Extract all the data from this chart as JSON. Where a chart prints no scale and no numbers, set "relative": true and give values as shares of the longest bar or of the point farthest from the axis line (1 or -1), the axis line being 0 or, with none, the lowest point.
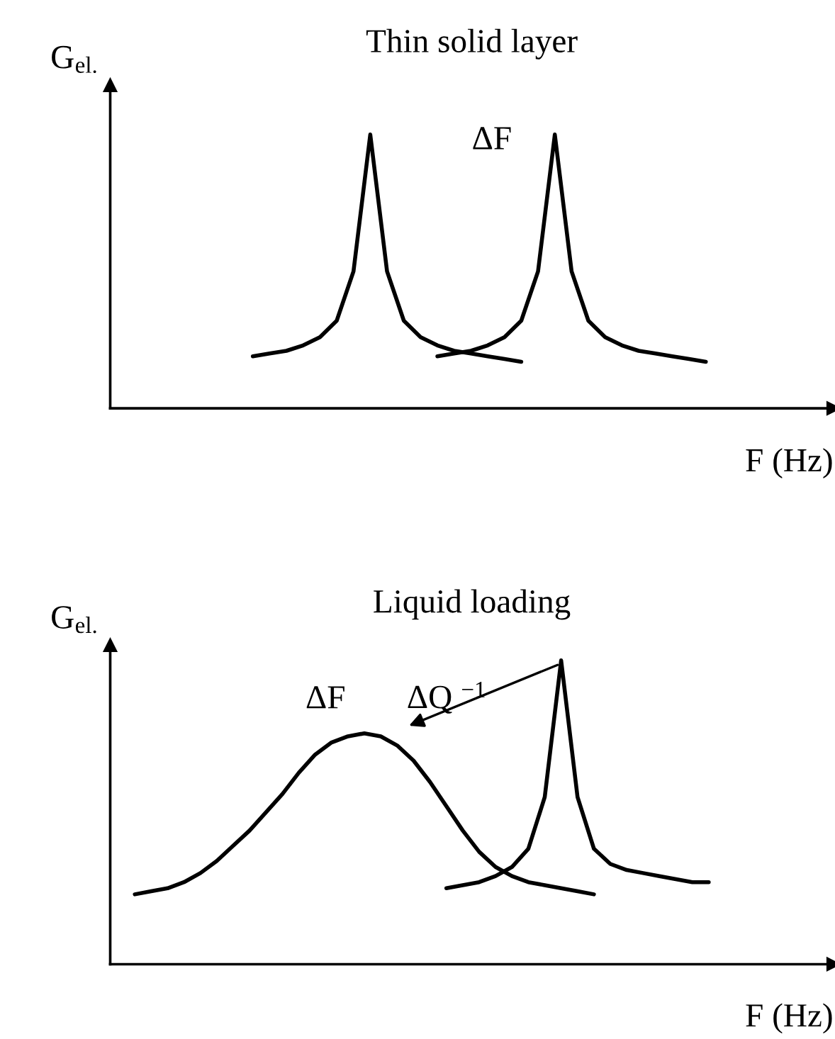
{
  "chart_data": [
    {
      "type": "line",
      "title": "Thin solid layer",
      "xlabel": "F (Hz)",
      "ylabel": "G$_{el.}$",
      "relative": true,
      "annotations": [
        "ΔF"
      ],
      "categories": [
        null,
        null,
        null,
        null,
        null,
        null,
        null,
        null,
        null,
        null,
        null,
        null,
        null,
        null,
        null,
        null,
        null,
        null,
        null,
        null,
        null,
        null,
        null,
        null,
        null,
        null,
        null,
        null,
        null,
        null,
        null,
        null,
        null,
        null,
        null,
        null,
        null,
        null,
        null,
        null,
        null,
        null
      ],
      "series": [
        {
          "color": "#000000",
          "values": [
            null,
            null,
            null,
            null,
            null,
            null,
            null,
            null,
            0.19,
            0.2,
            0.21,
            0.23,
            0.26,
            0.32,
            0.5,
            1.0,
            0.5,
            0.32,
            0.26,
            0.23,
            0.21,
            0.2,
            0.19,
            0.18,
            0.17,
            null,
            null,
            null,
            null,
            null,
            null,
            null,
            null,
            null,
            null,
            null,
            null,
            null,
            null,
            null,
            null,
            null
          ]
        },
        {
          "color": "#000000",
          "values": [
            null,
            null,
            null,
            null,
            null,
            null,
            null,
            null,
            null,
            null,
            null,
            null,
            null,
            null,
            null,
            null,
            null,
            null,
            null,
            0.19,
            0.2,
            0.21,
            0.23,
            0.26,
            0.32,
            0.5,
            1.0,
            0.5,
            0.32,
            0.26,
            0.23,
            0.21,
            0.2,
            0.19,
            0.18,
            0.17,
            null,
            null,
            null,
            null,
            null,
            null
          ]
        }
      ]
    },
    {
      "type": "line",
      "title": "Liquid loading",
      "xlabel": "F (Hz)",
      "ylabel": "G$_{el.}$",
      "relative": true,
      "annotations": [
        "ΔF",
        "ΔQ $^{−1}$"
      ],
      "categories": [
        null,
        null,
        null,
        null,
        null,
        null,
        null,
        null,
        null,
        null,
        null,
        null,
        null,
        null,
        null,
        null,
        null,
        null,
        null,
        null,
        null,
        null,
        null,
        null,
        null,
        null,
        null,
        null,
        null,
        null,
        null,
        null,
        null,
        null,
        null,
        null,
        null,
        null,
        null,
        null,
        null,
        null,
        null
      ],
      "series": [
        {
          "color": "#000000",
          "values": [
            null,
            0.23,
            0.24,
            0.25,
            0.27,
            0.3,
            0.34,
            0.39,
            0.44,
            0.5,
            0.56,
            0.63,
            0.69,
            0.73,
            0.75,
            0.76,
            0.75,
            0.72,
            0.67,
            0.6,
            0.52,
            0.44,
            0.37,
            0.32,
            0.29,
            0.27,
            0.26,
            0.25,
            0.24,
            0.23,
            null,
            null,
            null,
            null,
            null,
            null,
            null,
            null,
            null,
            null,
            null,
            null,
            null
          ]
        },
        {
          "color": "#000000",
          "values": [
            null,
            null,
            null,
            null,
            null,
            null,
            null,
            null,
            null,
            null,
            null,
            null,
            null,
            null,
            null,
            null,
            null,
            null,
            null,
            null,
            0.25,
            0.26,
            0.27,
            0.29,
            0.32,
            0.38,
            0.55,
            1.0,
            0.55,
            0.38,
            0.33,
            0.31,
            0.3,
            0.29,
            0.28,
            0.27,
            0.27,
            null,
            null,
            null,
            null,
            null,
            null
          ]
        }
      ]
    }
  ]
}
